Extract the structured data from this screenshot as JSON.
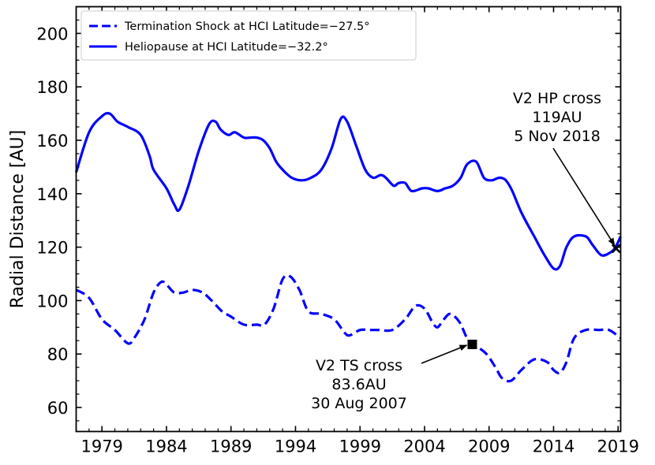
{
  "chart_data": {
    "type": "line",
    "title": "",
    "xlabel": "",
    "ylabel": "Radial Distance [AU]",
    "xlim": [
      1977,
      2019.2
    ],
    "ylim": [
      51,
      210
    ],
    "xticks": [
      1979,
      1984,
      1989,
      1994,
      1999,
      2004,
      2009,
      2014,
      2019
    ],
    "xtick_labels": [
      "1979",
      "1984",
      "1989",
      "1994",
      "1999",
      "2004",
      "2009",
      "2014",
      "2019"
    ],
    "yticks": [
      60,
      80,
      100,
      120,
      140,
      160,
      180,
      200
    ],
    "ytick_labels": [
      "60",
      "80",
      "100",
      "120",
      "140",
      "160",
      "180",
      "200"
    ],
    "legend_position": "top-left",
    "color": "#0000ff",
    "series": [
      {
        "name": "Termination Shock at HCI Latitude=−27.5°",
        "style": "dashed",
        "x": [
          1977.0,
          1978.0,
          1979.0,
          1980.0,
          1981.0,
          1981.5,
          1982.3,
          1983.0,
          1983.6,
          1984.0,
          1984.6,
          1985.3,
          1986.0,
          1986.8,
          1987.5,
          1988.3,
          1989.0,
          1990.0,
          1991.0,
          1991.6,
          1992.3,
          1993.0,
          1993.6,
          1994.3,
          1995.0,
          1996.0,
          1997.0,
          1997.8,
          1998.2,
          1999.0,
          1999.7,
          2000.5,
          2001.5,
          2002.5,
          2003.3,
          2004.0,
          2004.6,
          2005.0,
          2005.5,
          2006.0,
          2006.7,
          2007.4,
          2008.0,
          2008.8,
          2009.5,
          2010.0,
          2010.7,
          2011.5,
          2012.5,
          2013.5,
          2014.0,
          2014.5,
          2015.0,
          2015.6,
          2016.5,
          2017.5,
          2018.3,
          2019.2
        ],
        "y": [
          104,
          101,
          93,
          89,
          84,
          86,
          93,
          103,
          107,
          106,
          103,
          103,
          104,
          103,
          100,
          96,
          94,
          91,
          91,
          91,
          97,
          108,
          109,
          104,
          96,
          95,
          93,
          88,
          87,
          89,
          89,
          89,
          89,
          93,
          98,
          97,
          92,
          90,
          93,
          95,
          92,
          85,
          83,
          80,
          75,
          71,
          70,
          74,
          78,
          77,
          74,
          73,
          77,
          86,
          89,
          89,
          89,
          86
        ]
      },
      {
        "name": "Heliopause at HCI Latitude=−32.2°",
        "style": "solid",
        "x": [
          1977.0,
          1978.0,
          1979.0,
          1979.6,
          1980.2,
          1981.0,
          1982.0,
          1982.7,
          1983.0,
          1984.0,
          1984.6,
          1985.0,
          1985.7,
          1986.5,
          1987.3,
          1987.8,
          1988.2,
          1988.8,
          1989.3,
          1990.0,
          1990.5,
          1991.0,
          1991.5,
          1992.0,
          1992.5,
          1993.0,
          1993.7,
          1994.5,
          1995.2,
          1996.0,
          1996.8,
          1997.5,
          1998.0,
          1998.7,
          1999.4,
          2000.0,
          2000.6,
          2001.0,
          2001.6,
          2002.0,
          2002.5,
          2003.0,
          2003.8,
          2004.3,
          2005.0,
          2005.6,
          2006.2,
          2006.8,
          2007.3,
          2008.0,
          2008.6,
          2009.2,
          2009.8,
          2010.3,
          2010.8,
          2011.5,
          2012.5,
          2013.3,
          2014.0,
          2014.5,
          2015.0,
          2015.6,
          2016.5,
          2017.0,
          2017.7,
          2018.4,
          2018.8,
          2019.2
        ],
        "y": [
          148,
          163,
          169,
          170,
          167,
          165,
          162,
          154,
          149,
          142,
          136,
          134,
          143,
          156,
          166,
          167,
          164,
          162,
          163,
          161,
          161,
          161,
          160,
          157,
          152,
          149,
          146,
          145,
          146,
          149,
          157,
          168,
          167,
          158,
          149,
          146,
          147,
          146,
          143,
          144,
          144,
          141,
          142,
          142,
          141,
          142,
          143,
          146,
          151,
          152,
          146,
          145,
          146,
          145,
          141,
          133,
          124,
          117,
          112,
          113,
          120,
          124,
          124,
          121,
          117,
          118,
          120,
          124
        ]
      }
    ],
    "annotations": [
      {
        "lines": [
          "V2 HP cross",
          "119AU",
          "5 Nov 2018"
        ],
        "point": [
          2018.85,
          119.5
        ],
        "marker": "x"
      },
      {
        "lines": [
          "V2 TS cross",
          "83.6AU",
          "30 Aug 2007"
        ],
        "point": [
          2007.7,
          83.6
        ],
        "marker": "square"
      }
    ]
  }
}
